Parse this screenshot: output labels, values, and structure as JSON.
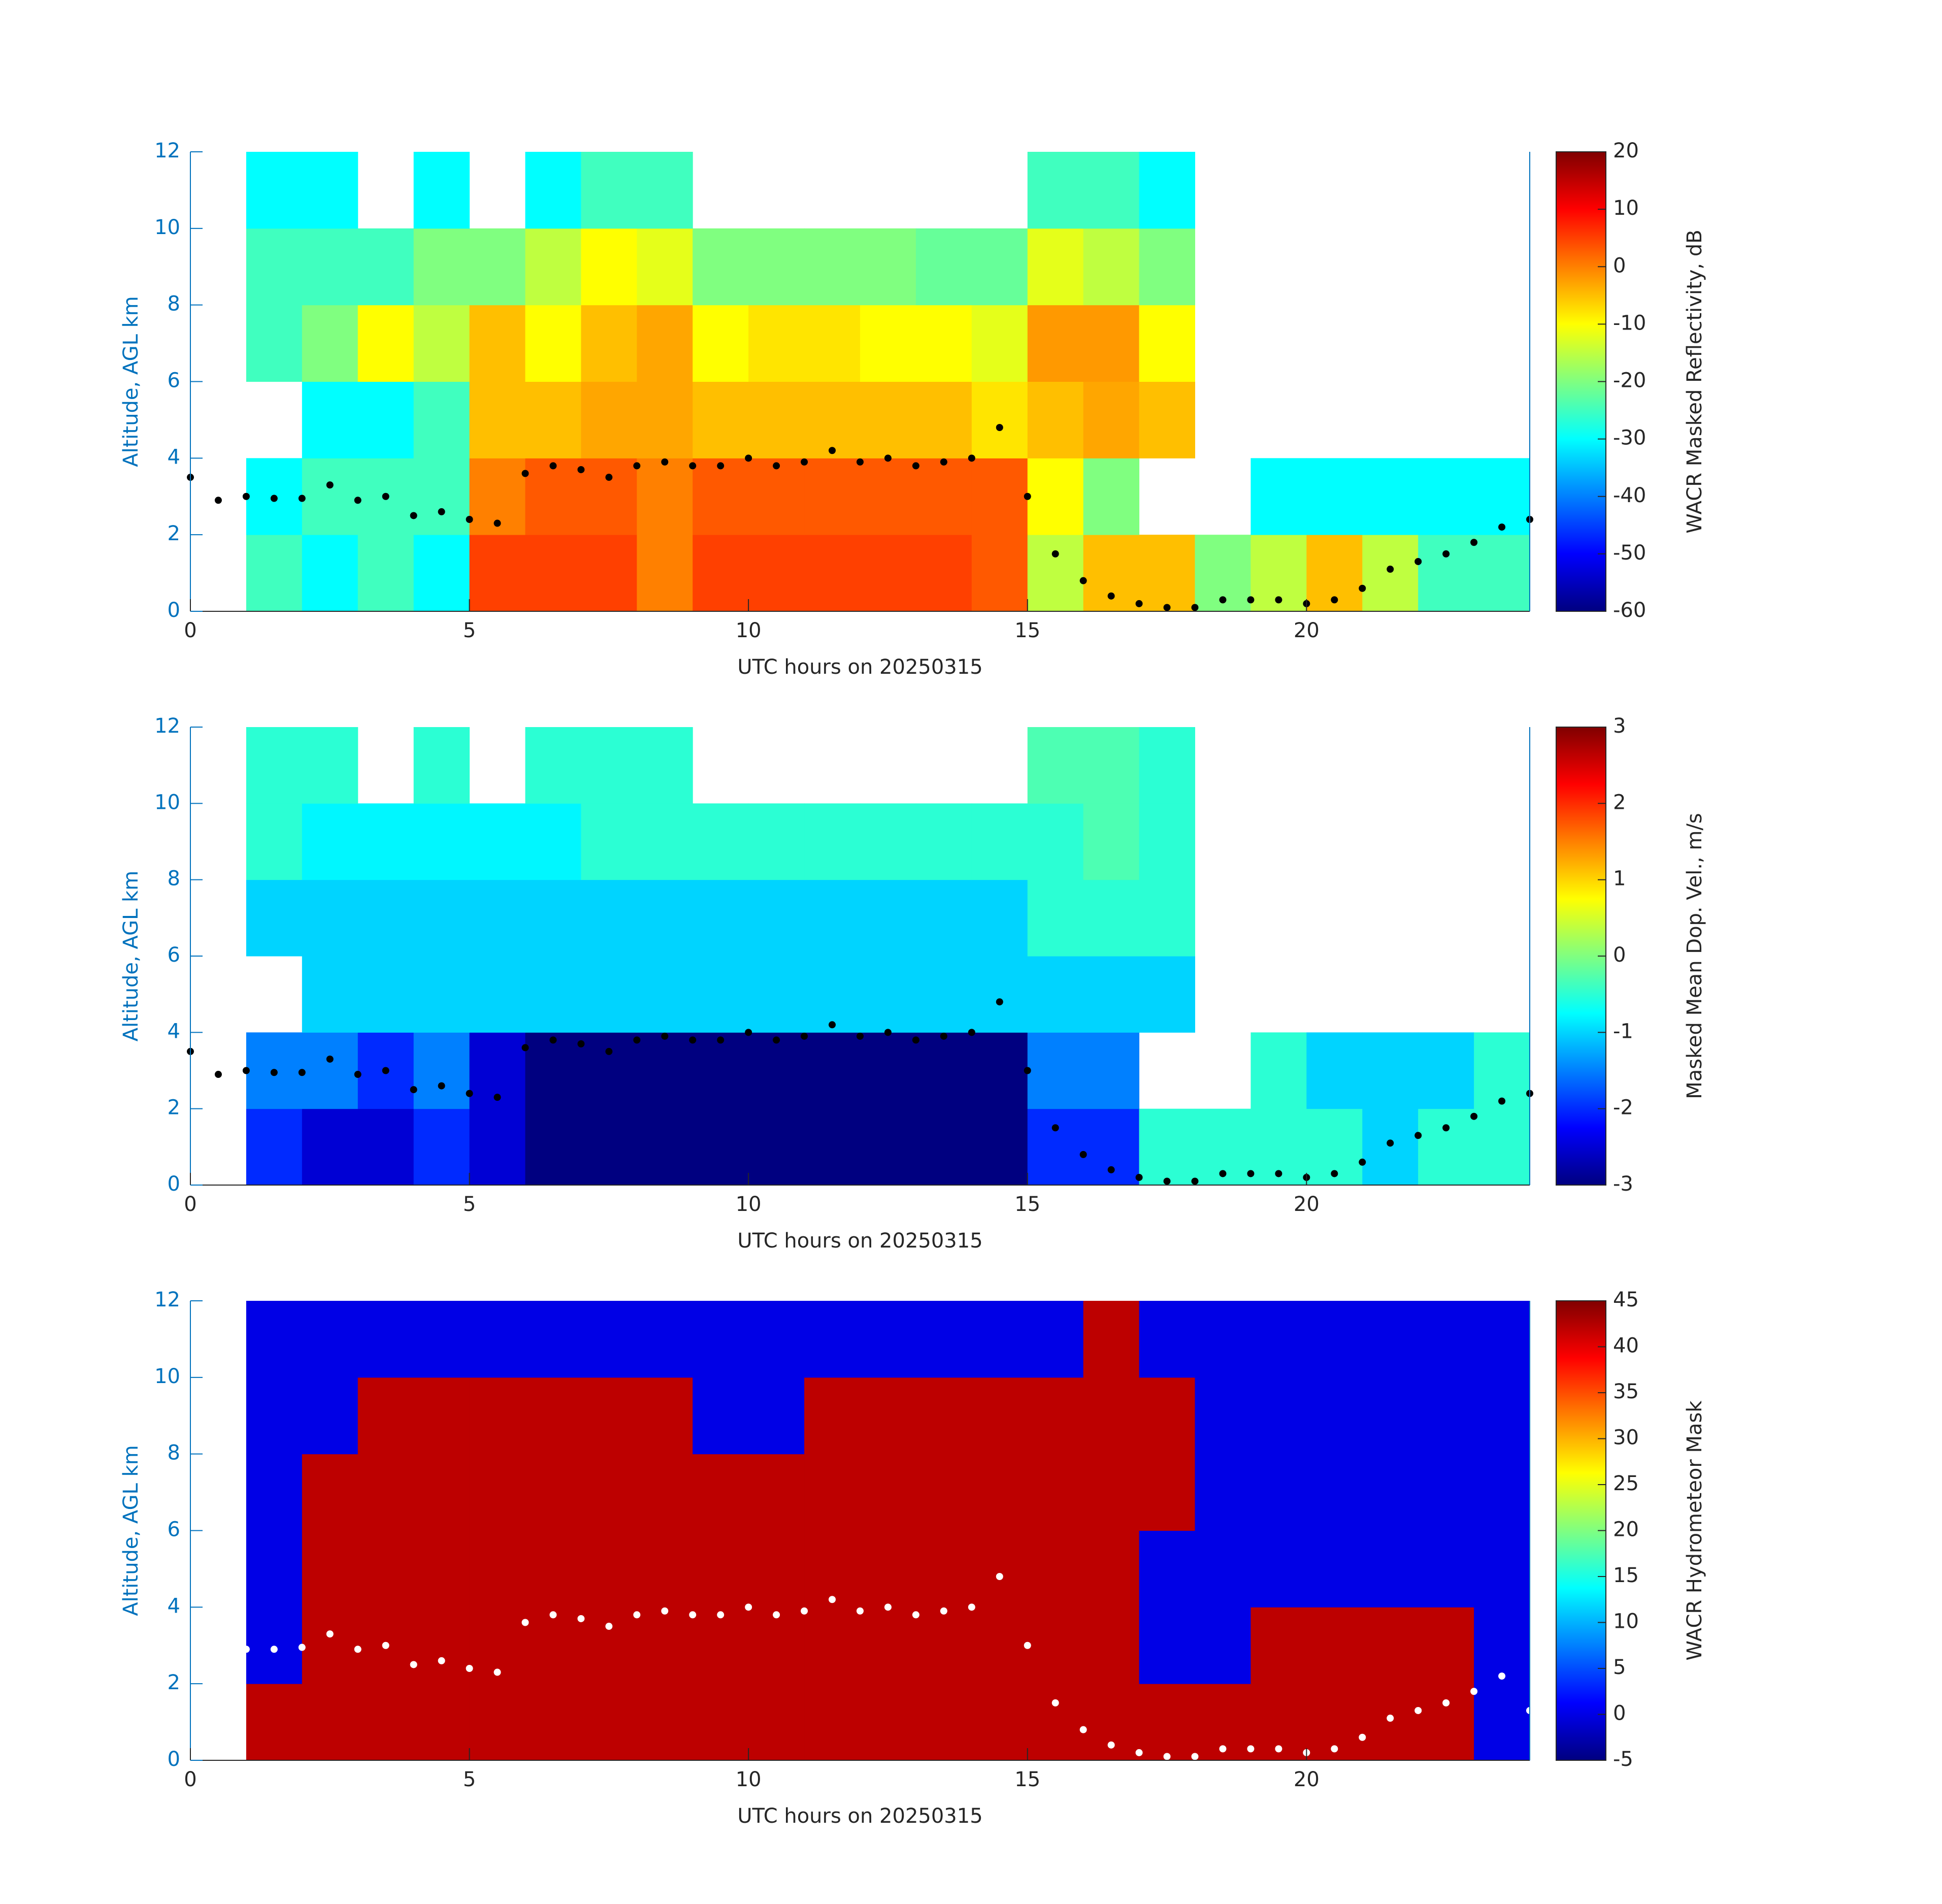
{
  "chart_data": [
    {
      "type": "heatmap",
      "colormap": "jet",
      "xlabel": "UTC hours on 20250315",
      "ylabel": "Altitude, AGL km",
      "xlim": [
        0,
        24
      ],
      "ylim": [
        0,
        12
      ],
      "xticks": [
        0,
        5,
        10,
        15,
        20
      ],
      "yticks": [
        0,
        2,
        4,
        6,
        8,
        10,
        12
      ],
      "x_edges": [
        0,
        1,
        2,
        3,
        4,
        5,
        6,
        7,
        8,
        9,
        10,
        11,
        12,
        13,
        14,
        15,
        16,
        17,
        18,
        19,
        20,
        21,
        22,
        23,
        24
      ],
      "y_edges": [
        0,
        2,
        4,
        6,
        8,
        10,
        12
      ],
      "z": [
        [
          null,
          -25,
          -30,
          -25,
          -30,
          5,
          5,
          5,
          0,
          5,
          5,
          5,
          5,
          5,
          3,
          -15,
          -5,
          -5,
          -20,
          -15,
          -5,
          -15,
          -25,
          -25
        ],
        [
          null,
          -30,
          -25,
          -25,
          -25,
          0,
          3,
          3,
          0,
          3,
          3,
          3,
          3,
          3,
          3,
          -10,
          -20,
          null,
          null,
          -30,
          -30,
          -30,
          -30,
          -30
        ],
        [
          null,
          null,
          -30,
          -30,
          -25,
          -5,
          -5,
          -3,
          -3,
          -5,
          -5,
          -5,
          -5,
          -5,
          -8,
          -5,
          -3,
          -5,
          null,
          null,
          null,
          null,
          null,
          null
        ],
        [
          null,
          -25,
          -20,
          -10,
          -15,
          -5,
          -10,
          -5,
          -3,
          -10,
          -8,
          -8,
          -10,
          -10,
          -12,
          -2,
          -2,
          -10,
          null,
          null,
          null,
          null,
          null,
          null
        ],
        [
          null,
          -25,
          -25,
          -25,
          -20,
          -20,
          -15,
          -10,
          -12,
          -20,
          -20,
          -20,
          -20,
          -22,
          -22,
          -12,
          -15,
          -20,
          null,
          null,
          null,
          null,
          null,
          null
        ],
        [
          null,
          -30,
          -30,
          null,
          -30,
          null,
          -30,
          -25,
          -25,
          null,
          null,
          null,
          null,
          null,
          null,
          -25,
          -25,
          -30,
          null,
          null,
          null,
          null,
          null,
          null
        ]
      ],
      "colorbar": {
        "label": "WACR Masked Reflectivity, dB",
        "clim": [
          -60,
          20
        ],
        "ticks": [
          -60,
          -50,
          -40,
          -30,
          -20,
          -10,
          0,
          10,
          20
        ]
      },
      "overlay": {
        "type": "scatter",
        "color": "#000000",
        "x": [
          0,
          0.5,
          1,
          1.5,
          2,
          2.5,
          3,
          3.5,
          4,
          4.5,
          5,
          5.5,
          6,
          6.5,
          7,
          7.5,
          8,
          8.5,
          9,
          9.5,
          10,
          10.5,
          11,
          11.5,
          12,
          12.5,
          13,
          13.5,
          14,
          14.5,
          15,
          15.5,
          16,
          16.5,
          17,
          17.5,
          18,
          18.5,
          19,
          19.5,
          20,
          20.5,
          21,
          21.5,
          22,
          22.5,
          23,
          23.5,
          24
        ],
        "y": [
          3.5,
          2.9,
          3.0,
          2.95,
          2.95,
          3.3,
          2.9,
          3.0,
          2.5,
          2.6,
          2.4,
          2.3,
          3.6,
          3.8,
          3.7,
          3.5,
          3.8,
          3.9,
          3.8,
          3.8,
          4.0,
          3.8,
          3.9,
          4.2,
          3.9,
          4.0,
          3.8,
          3.9,
          4.0,
          4.8,
          3.0,
          1.5,
          0.8,
          0.4,
          0.2,
          0.1,
          0.1,
          0.3,
          0.3,
          0.3,
          0.2,
          0.3,
          0.6,
          1.1,
          1.3,
          1.5,
          1.8,
          2.2,
          2.4
        ]
      }
    },
    {
      "type": "heatmap",
      "colormap": "jet",
      "xlabel": "UTC hours on 20250315",
      "ylabel": "Altitude, AGL km",
      "xlim": [
        0,
        24
      ],
      "ylim": [
        0,
        12
      ],
      "xticks": [
        0,
        5,
        10,
        15,
        20
      ],
      "yticks": [
        0,
        2,
        4,
        6,
        8,
        10,
        12
      ],
      "x_edges": [
        0,
        1,
        2,
        3,
        4,
        5,
        6,
        7,
        8,
        9,
        10,
        11,
        12,
        13,
        14,
        15,
        16,
        17,
        18,
        19,
        20,
        21,
        22,
        23,
        24
      ],
      "y_edges": [
        0,
        2,
        4,
        6,
        8,
        10,
        12
      ],
      "z": [
        [
          null,
          -2,
          -2.5,
          -2.5,
          -2,
          -2.5,
          -3,
          -3,
          -3,
          -3,
          -3,
          -3,
          -3,
          -3,
          -3,
          -2,
          -2,
          -0.5,
          -0.5,
          -0.5,
          -0.5,
          -1,
          -0.5,
          -0.5
        ],
        [
          null,
          -1.5,
          -1.5,
          -2,
          -1.5,
          -2.5,
          -3,
          -3,
          -3,
          -3,
          -3,
          -3,
          -3,
          -3,
          -3,
          -1.5,
          -1.5,
          null,
          null,
          -0.5,
          -1,
          -1,
          -1,
          -0.5
        ],
        [
          null,
          null,
          -1,
          -1,
          -1,
          -1,
          -1,
          -1,
          -1,
          -1,
          -1,
          -1,
          -1,
          -1,
          -1,
          -1,
          -1,
          -1,
          null,
          null,
          null,
          null,
          null,
          null
        ],
        [
          null,
          -1,
          -1,
          -1,
          -1,
          -1,
          -1,
          -1,
          -1,
          -1,
          -1,
          -1,
          -1,
          -1,
          -1,
          -0.5,
          -0.5,
          -0.5,
          null,
          null,
          null,
          null,
          null,
          null
        ],
        [
          null,
          -0.5,
          -0.8,
          -0.8,
          -0.8,
          -0.8,
          -0.8,
          -0.5,
          -0.5,
          -0.5,
          -0.5,
          -0.5,
          -0.5,
          -0.5,
          -0.5,
          -0.5,
          -0.3,
          -0.5,
          null,
          null,
          null,
          null,
          null,
          null
        ],
        [
          null,
          -0.5,
          -0.5,
          null,
          -0.5,
          null,
          -0.5,
          -0.5,
          -0.5,
          null,
          null,
          null,
          null,
          null,
          null,
          -0.3,
          -0.3,
          -0.5,
          null,
          null,
          null,
          null,
          null,
          null
        ]
      ],
      "colorbar": {
        "label": "Masked Mean Dop. Vel., m/s",
        "clim": [
          -3,
          3
        ],
        "ticks": [
          -3,
          -2,
          -1,
          0,
          1,
          2,
          3
        ]
      },
      "overlay": {
        "type": "scatter",
        "color": "#000000",
        "x": [
          0,
          0.5,
          1,
          1.5,
          2,
          2.5,
          3,
          3.5,
          4,
          4.5,
          5,
          5.5,
          6,
          6.5,
          7,
          7.5,
          8,
          8.5,
          9,
          9.5,
          10,
          10.5,
          11,
          11.5,
          12,
          12.5,
          13,
          13.5,
          14,
          14.5,
          15,
          15.5,
          16,
          16.5,
          17,
          17.5,
          18,
          18.5,
          19,
          19.5,
          20,
          20.5,
          21,
          21.5,
          22,
          22.5,
          23,
          23.5,
          24
        ],
        "y": [
          3.5,
          2.9,
          3.0,
          2.95,
          2.95,
          3.3,
          2.9,
          3.0,
          2.5,
          2.6,
          2.4,
          2.3,
          3.6,
          3.8,
          3.7,
          3.5,
          3.8,
          3.9,
          3.8,
          3.8,
          4.0,
          3.8,
          3.9,
          4.2,
          3.9,
          4.0,
          3.8,
          3.9,
          4.0,
          4.8,
          3.0,
          1.5,
          0.8,
          0.4,
          0.2,
          0.1,
          0.1,
          0.3,
          0.3,
          0.3,
          0.2,
          0.3,
          0.6,
          1.1,
          1.3,
          1.5,
          1.8,
          2.2,
          2.4
        ]
      }
    },
    {
      "type": "heatmap",
      "colormap": "jet",
      "xlabel": "UTC hours on 20250315",
      "ylabel": "Altitude, AGL km",
      "xlim": [
        0,
        24
      ],
      "ylim": [
        0,
        12
      ],
      "xticks": [
        0,
        5,
        10,
        15,
        20
      ],
      "yticks": [
        0,
        2,
        4,
        6,
        8,
        10,
        12
      ],
      "x_edges": [
        0,
        1,
        2,
        3,
        4,
        5,
        6,
        7,
        8,
        9,
        10,
        11,
        12,
        13,
        14,
        15,
        16,
        17,
        18,
        19,
        20,
        21,
        22,
        23,
        24
      ],
      "y_edges": [
        0,
        2,
        4,
        6,
        8,
        10,
        12
      ],
      "z": [
        [
          null,
          42,
          42,
          42,
          42,
          42,
          42,
          42,
          42,
          42,
          42,
          42,
          42,
          42,
          42,
          42,
          42,
          42,
          42,
          42,
          42,
          42,
          42,
          0
        ],
        [
          null,
          0,
          42,
          42,
          42,
          42,
          42,
          42,
          42,
          42,
          42,
          42,
          42,
          42,
          42,
          42,
          42,
          0,
          0,
          42,
          42,
          42,
          42,
          0
        ],
        [
          null,
          0,
          42,
          42,
          42,
          42,
          42,
          42,
          42,
          42,
          42,
          42,
          42,
          42,
          42,
          42,
          42,
          0,
          0,
          0,
          0,
          0,
          0,
          0
        ],
        [
          null,
          0,
          42,
          42,
          42,
          42,
          42,
          42,
          42,
          42,
          42,
          42,
          42,
          42,
          42,
          42,
          42,
          42,
          0,
          0,
          0,
          0,
          0,
          0
        ],
        [
          null,
          0,
          0,
          42,
          42,
          42,
          42,
          42,
          42,
          0,
          0,
          42,
          42,
          42,
          42,
          42,
          42,
          42,
          0,
          0,
          0,
          0,
          0,
          0
        ],
        [
          null,
          0,
          0,
          0,
          0,
          0,
          0,
          0,
          0,
          0,
          0,
          0,
          0,
          0,
          0,
          0,
          42,
          0,
          0,
          0,
          0,
          0,
          0,
          0
        ]
      ],
      "colorbar": {
        "label": "WACR Hydrometeor Mask",
        "clim": [
          -5,
          45
        ],
        "ticks": [
          -5,
          0,
          5,
          10,
          15,
          20,
          25,
          30,
          35,
          40,
          45
        ]
      },
      "overlay": {
        "type": "scatter",
        "color": "#ffffff",
        "x": [
          1,
          1.5,
          2,
          2.5,
          3,
          3.5,
          4,
          4.5,
          5,
          5.5,
          6,
          6.5,
          7,
          7.5,
          8,
          8.5,
          9,
          9.5,
          10,
          10.5,
          11,
          11.5,
          12,
          12.5,
          13,
          13.5,
          14,
          14.5,
          15,
          15.5,
          16,
          16.5,
          17,
          17.5,
          18,
          18.5,
          19,
          19.5,
          20,
          20.5,
          21,
          21.5,
          22,
          22.5,
          23,
          23.5,
          24
        ],
        "y": [
          2.9,
          2.9,
          2.95,
          3.3,
          2.9,
          3.0,
          2.5,
          2.6,
          2.4,
          2.3,
          3.6,
          3.8,
          3.7,
          3.5,
          3.8,
          3.9,
          3.8,
          3.8,
          4.0,
          3.8,
          3.9,
          4.2,
          3.9,
          4.0,
          3.8,
          3.9,
          4.0,
          4.8,
          3.0,
          1.5,
          0.8,
          0.4,
          0.2,
          0.1,
          0.1,
          0.3,
          0.3,
          0.3,
          0.2,
          0.3,
          0.6,
          1.1,
          1.3,
          1.5,
          1.8,
          2.2,
          1.3
        ]
      }
    }
  ]
}
